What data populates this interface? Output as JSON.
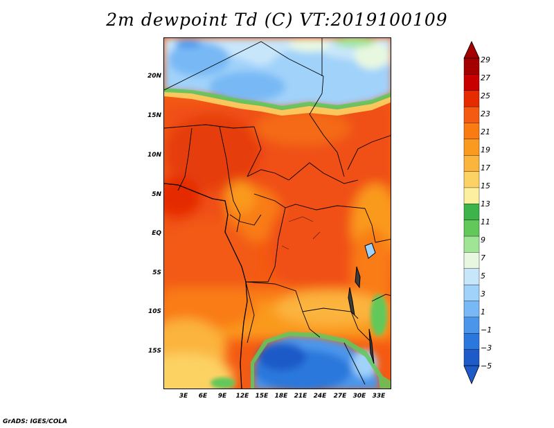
{
  "title": "2m dewpoint Td (C) VT:2019100109",
  "credit": "GrADS: IGES/COLA",
  "map": {
    "lat_labels": [
      "20N",
      "15N",
      "10N",
      "5N",
      "EQ",
      "5S",
      "10S",
      "15S"
    ],
    "lon_labels": [
      "3E",
      "6E",
      "9E",
      "12E",
      "15E",
      "18E",
      "21E",
      "24E",
      "27E",
      "30E",
      "33E"
    ]
  },
  "colorbar": {
    "labels": [
      "29",
      "27",
      "25",
      "23",
      "21",
      "19",
      "17",
      "15",
      "13",
      "11",
      "9",
      "7",
      "5",
      "3",
      "1",
      "−1",
      "−3",
      "−5"
    ],
    "colors": [
      "#a50000",
      "#c80000",
      "#e62b00",
      "#f45a12",
      "#f97b12",
      "#fa9a1e",
      "#fbb43c",
      "#fcd264",
      "#fcf0a0",
      "#3cb44a",
      "#62c85a",
      "#a0e496",
      "#e8f8e0",
      "#c8e6fa",
      "#a0d2fa",
      "#78b9f5",
      "#4b96eb",
      "#2b78dc",
      "#1e5ac8"
    ]
  }
}
